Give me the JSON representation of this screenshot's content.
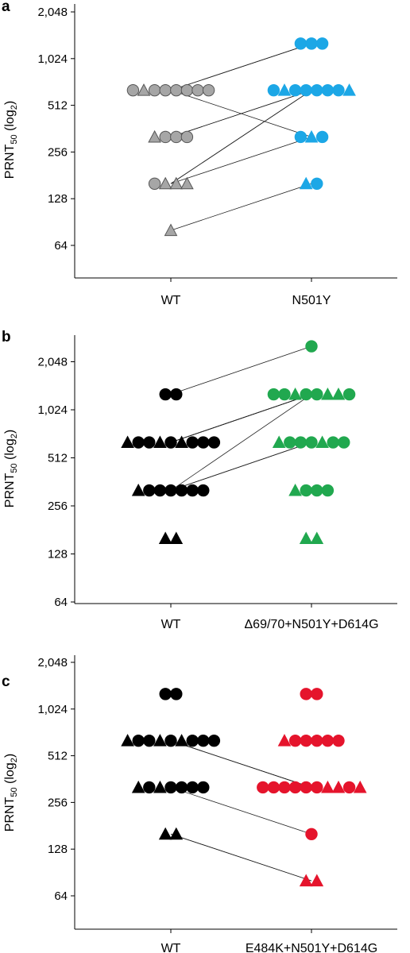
{
  "colors": {
    "gray": "#a6a6a6",
    "blue": "#1ca7e6",
    "black": "#000000",
    "green": "#21a84f",
    "red": "#e5142c"
  },
  "y_axis": {
    "label": "PRNT",
    "label_sub": "50",
    "label_suffix": " (log",
    "label_sub2": "2",
    "label_close": ")"
  },
  "chart_data": [
    {
      "panel": "a",
      "type": "scatter",
      "yscale": "log2",
      "ylim": [
        45,
        2560
      ],
      "yticks": [
        64,
        128,
        256,
        512,
        1024,
        2048
      ],
      "ytick_labels": [
        "64",
        "128",
        "256",
        "512",
        "1,024",
        "2,048"
      ],
      "categories": [
        "WT",
        "N501Y"
      ],
      "colors": [
        "gray",
        "blue"
      ],
      "groups": [
        {
          "cat": 0,
          "value": 640,
          "shapes": "otoooooo"
        },
        {
          "cat": 0,
          "value": 320,
          "shapes": "tooo"
        },
        {
          "cat": 0,
          "value": 160,
          "shapes": "ottt"
        },
        {
          "cat": 0,
          "value": 80,
          "shapes": "t"
        },
        {
          "cat": 1,
          "value": 1280,
          "shapes": "ooo"
        },
        {
          "cat": 1,
          "value": 640,
          "shapes": "otooooot"
        },
        {
          "cat": 1,
          "value": 320,
          "shapes": "oto"
        },
        {
          "cat": 1,
          "value": 160,
          "shapes": "to"
        }
      ],
      "pairs": [
        [
          640,
          1280
        ],
        [
          640,
          1280
        ],
        [
          640,
          320
        ],
        [
          320,
          640
        ],
        [
          320,
          640
        ],
        [
          160,
          640
        ],
        [
          160,
          640
        ],
        [
          160,
          320
        ],
        [
          80,
          160
        ]
      ]
    },
    {
      "panel": "b",
      "type": "scatter",
      "yscale": "log2",
      "ylim": [
        64,
        2900
      ],
      "yticks": [
        64,
        128,
        256,
        512,
        1024,
        2048
      ],
      "ytick_labels": [
        "64",
        "128",
        "256",
        "512",
        "1,024",
        "2,048"
      ],
      "categories": [
        "WT",
        "Δ69/70+N501Y+D614G"
      ],
      "colors": [
        "black",
        "green"
      ],
      "groups": [
        {
          "cat": 0,
          "value": 1280,
          "shapes": "oo"
        },
        {
          "cat": 0,
          "value": 640,
          "shapes": "toototooo"
        },
        {
          "cat": 0,
          "value": 320,
          "shapes": "toooooo"
        },
        {
          "cat": 0,
          "value": 160,
          "shapes": "tt"
        },
        {
          "cat": 1,
          "value": 2560,
          "shapes": "o"
        },
        {
          "cat": 1,
          "value": 1280,
          "shapes": "ootootto"
        },
        {
          "cat": 1,
          "value": 640,
          "shapes": "toootoo"
        },
        {
          "cat": 1,
          "value": 320,
          "shapes": "tooo"
        },
        {
          "cat": 1,
          "value": 160,
          "shapes": "tt"
        }
      ],
      "pairs": [
        [
          1280,
          2560
        ],
        [
          640,
          1280
        ],
        [
          640,
          1280
        ],
        [
          640,
          1280
        ],
        [
          640,
          1280
        ],
        [
          320,
          1280
        ],
        [
          320,
          640
        ],
        [
          320,
          640
        ]
      ]
    },
    {
      "panel": "c",
      "type": "scatter",
      "yscale": "log2",
      "ylim": [
        45,
        2560
      ],
      "yticks": [
        64,
        128,
        256,
        512,
        1024,
        2048
      ],
      "ytick_labels": [
        "64",
        "128",
        "256",
        "512",
        "1,024",
        "2,048"
      ],
      "categories": [
        "WT",
        "E484K+N501Y+D614G"
      ],
      "colors": [
        "black",
        "red"
      ],
      "groups": [
        {
          "cat": 0,
          "value": 1280,
          "shapes": "oo"
        },
        {
          "cat": 0,
          "value": 640,
          "shapes": "toototooo"
        },
        {
          "cat": 0,
          "value": 320,
          "shapes": "totoooo"
        },
        {
          "cat": 0,
          "value": 160,
          "shapes": "tt"
        },
        {
          "cat": 1,
          "value": 1280,
          "shapes": "oo"
        },
        {
          "cat": 1,
          "value": 640,
          "shapes": "tooooo"
        },
        {
          "cat": 1,
          "value": 320,
          "shapes": "oooooottot"
        },
        {
          "cat": 1,
          "value": 160,
          "shapes": "o"
        },
        {
          "cat": 1,
          "value": 80,
          "shapes": "tt"
        }
      ],
      "pairs": [
        [
          640,
          320
        ],
        [
          640,
          320
        ],
        [
          640,
          320
        ],
        [
          320,
          160
        ],
        [
          160,
          80
        ],
        [
          160,
          80
        ]
      ]
    }
  ]
}
